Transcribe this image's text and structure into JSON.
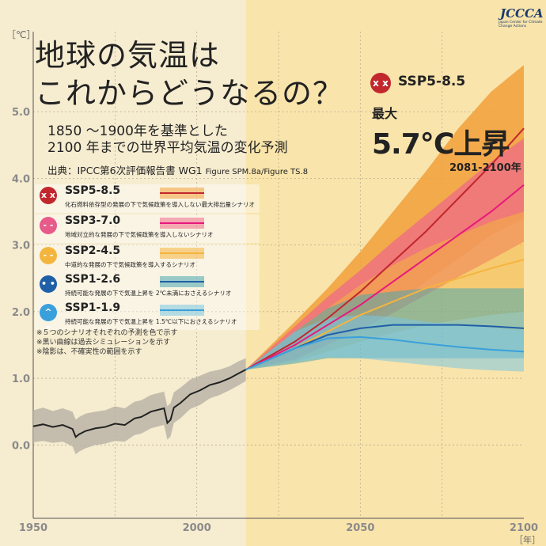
{
  "title_line1": "地球の気温は",
  "title_line2": "これからどうなるの？",
  "subtitle_line1": "1850 ～1900年を基準とした",
  "subtitle_line2": "2100 年までの世界平均気温の変化予測",
  "source_main": "出典：IPCC第6次評価報告書 WG1",
  "source_fig": "Figure SPM.8a/Figure TS.8",
  "logo": "JCCCA",
  "logo_sub": "Japan Center for Climate Change Actions",
  "legend": [
    {
      "name": "SSP5-8.5",
      "desc": "化石燃料依存型の発展の下で気候政策を導入しない最大排出量シナリオ",
      "color": "#c1272d",
      "face": "x x",
      "icon": "dizzy-face-icon"
    },
    {
      "name": "SSP3-7.0",
      "desc": "地域対立的な発展の下で気候政策を導入しないシナリオ",
      "color": "#e75a8a",
      "face": "- -",
      "icon": "worried-face-icon"
    },
    {
      "name": "SSP2-4.5",
      "desc": "中道的な発展の下で気候政策を導入するシナリオ",
      "color": "#f4b53f",
      "face": "- -",
      "icon": "neutral-face-icon"
    },
    {
      "name": "SSP1-2.6",
      "desc": "持続可能な発展の下で気温上昇を 2℃未満におさえるシナリオ",
      "color": "#1f5fa8",
      "face": "• •",
      "icon": "smile-face-icon"
    },
    {
      "name": "SSP1-1.9",
      "desc": "持続可能な発展の下で気温上昇を 1.5℃以下におさえるシナリオ",
      "color": "#3aa0dc",
      "face": "^ ^",
      "icon": "happy-face-icon"
    }
  ],
  "notes": [
    "※５つのシナリオそれぞれの予測を色で示す",
    "※黒い曲線は過去シミュレーションを示す",
    "※陰影は、不確実性の範囲を示す"
  ],
  "callout": {
    "scenario": "SSP5-8.5",
    "label_max": "最大",
    "value": "5.7℃上昇",
    "period": "2081-2100年"
  },
  "chart_data": {
    "type": "line",
    "xlabel": "［年］",
    "ylabel": "［℃］",
    "xlim": [
      1950,
      2100
    ],
    "ylim": [
      -1.1,
      6.2
    ],
    "xticks": [
      1950,
      2000,
      2050,
      2100
    ],
    "yticks": [
      0.0,
      1.0,
      2.0,
      3.0,
      4.0,
      5.0
    ],
    "ytick_labels": [
      "0.0",
      "1.0",
      "2.0",
      "3.0",
      "4.0",
      "5.0"
    ],
    "grid": true,
    "historical": {
      "name": "過去シミュレーション",
      "color": "#222222",
      "x": [
        1950,
        1953,
        1956,
        1959,
        1962,
        1963,
        1964,
        1966,
        1969,
        1972,
        1975,
        1978,
        1981,
        1983,
        1986,
        1990,
        1991,
        1992,
        1993,
        1995,
        1998,
        2001,
        2004,
        2007,
        2010,
        2013,
        2015
      ],
      "y": [
        0.28,
        0.31,
        0.27,
        0.3,
        0.24,
        0.12,
        0.16,
        0.21,
        0.25,
        0.27,
        0.32,
        0.3,
        0.4,
        0.42,
        0.5,
        0.55,
        0.33,
        0.38,
        0.56,
        0.63,
        0.76,
        0.82,
        0.9,
        0.94,
        1.0,
        1.08,
        1.13
      ],
      "lower": [
        0.04,
        0.06,
        0.03,
        0.05,
        -0.02,
        -0.14,
        -0.1,
        -0.05,
        0.0,
        0.02,
        0.06,
        0.05,
        0.15,
        0.17,
        0.25,
        0.3,
        0.08,
        0.13,
        0.33,
        0.4,
        0.54,
        0.6,
        0.7,
        0.75,
        0.82,
        0.9,
        0.96
      ],
      "upper": [
        0.52,
        0.56,
        0.51,
        0.55,
        0.5,
        0.38,
        0.42,
        0.47,
        0.5,
        0.52,
        0.58,
        0.55,
        0.65,
        0.67,
        0.75,
        0.8,
        0.58,
        0.63,
        0.79,
        0.86,
        0.98,
        1.04,
        1.1,
        1.13,
        1.18,
        1.26,
        1.3
      ]
    },
    "series": [
      {
        "name": "SSP5-8.5",
        "color": "#c1272d",
        "band": "#f2a03a",
        "x": [
          2015,
          2030,
          2040,
          2050,
          2060,
          2070,
          2080,
          2090,
          2100
        ],
        "y": [
          1.13,
          1.55,
          1.9,
          2.3,
          2.75,
          3.2,
          3.7,
          4.2,
          4.75
        ],
        "lower": [
          1.13,
          1.3,
          1.52,
          1.8,
          2.1,
          2.45,
          2.8,
          3.15,
          3.4
        ],
        "upper": [
          1.13,
          1.85,
          2.35,
          2.9,
          3.5,
          4.1,
          4.75,
          5.3,
          5.7
        ]
      },
      {
        "name": "SSP3-7.0",
        "color": "#e8187c",
        "band": "#ee6a86",
        "x": [
          2015,
          2030,
          2040,
          2050,
          2060,
          2070,
          2080,
          2090,
          2100
        ],
        "y": [
          1.13,
          1.5,
          1.8,
          2.1,
          2.45,
          2.8,
          3.15,
          3.5,
          3.9
        ],
        "lower": [
          1.13,
          1.28,
          1.5,
          1.72,
          1.98,
          2.25,
          2.52,
          2.78,
          3.05
        ],
        "upper": [
          1.13,
          1.78,
          2.22,
          2.62,
          3.05,
          3.45,
          3.85,
          4.25,
          4.6
        ]
      },
      {
        "name": "SSP2-4.5",
        "color": "#f4b53f",
        "band": "#f4b53f",
        "x": [
          2015,
          2030,
          2040,
          2050,
          2060,
          2070,
          2080,
          2090,
          2100
        ],
        "y": [
          1.13,
          1.45,
          1.7,
          1.95,
          2.15,
          2.35,
          2.5,
          2.65,
          2.78
        ],
        "lower": [
          1.13,
          1.25,
          1.4,
          1.55,
          1.68,
          1.8,
          1.88,
          1.95,
          2.0
        ],
        "upper": [
          1.13,
          1.7,
          2.05,
          2.4,
          2.7,
          2.95,
          3.15,
          3.35,
          3.5
        ]
      },
      {
        "name": "SSP1-2.6",
        "color": "#1f5fa8",
        "band": "#4aa7b0",
        "x": [
          2015,
          2030,
          2040,
          2050,
          2060,
          2070,
          2080,
          2090,
          2100
        ],
        "y": [
          1.13,
          1.45,
          1.65,
          1.75,
          1.8,
          1.8,
          1.8,
          1.78,
          1.75
        ],
        "lower": [
          1.13,
          1.22,
          1.3,
          1.3,
          1.3,
          1.3,
          1.3,
          1.3,
          1.3
        ],
        "upper": [
          1.13,
          1.7,
          2.05,
          2.25,
          2.3,
          2.35,
          2.35,
          2.35,
          2.35
        ]
      },
      {
        "name": "SSP1-1.9",
        "color": "#3aa0dc",
        "band": "#7cc6e2",
        "x": [
          2015,
          2030,
          2040,
          2050,
          2060,
          2070,
          2080,
          2090,
          2100
        ],
        "y": [
          1.13,
          1.45,
          1.6,
          1.62,
          1.58,
          1.52,
          1.47,
          1.43,
          1.4
        ],
        "lower": [
          1.13,
          1.25,
          1.32,
          1.3,
          1.25,
          1.2,
          1.15,
          1.12,
          1.1
        ],
        "upper": [
          1.13,
          1.7,
          1.9,
          1.95,
          1.92,
          1.85,
          1.8,
          1.76,
          1.72
        ]
      }
    ]
  }
}
